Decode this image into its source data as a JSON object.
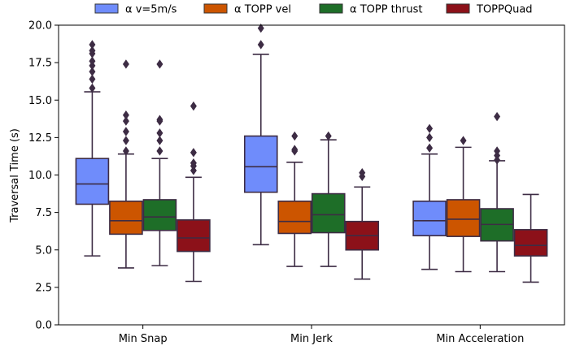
{
  "chart_data": {
    "type": "box",
    "title": "",
    "xlabel": "",
    "ylabel": "Traversal Time (s)",
    "ylim": [
      0,
      20
    ],
    "yticks": [
      "0.0",
      "2.5",
      "5.0",
      "7.5",
      "10.0",
      "12.5",
      "15.0",
      "17.5",
      "20.0"
    ],
    "categories": [
      "Min Snap",
      "Min Jerk",
      "Min Acceleration"
    ],
    "legend_position": "top-center",
    "series": [
      {
        "name": "α v=5m/s",
        "color": "#6f8cfb",
        "boxes": [
          {
            "whisker_low": 4.6,
            "q1": 8.05,
            "median": 9.4,
            "q3": 11.1,
            "whisker_high": 15.55,
            "outliers": [
              15.8,
              16.4,
              16.9,
              17.3,
              17.6,
              18.1,
              18.3,
              18.7
            ]
          },
          {
            "whisker_low": 5.35,
            "q1": 8.85,
            "median": 10.55,
            "q3": 12.6,
            "whisker_high": 18.05,
            "outliers": [
              18.7,
              19.8
            ]
          },
          {
            "whisker_low": 3.7,
            "q1": 5.95,
            "median": 6.95,
            "q3": 8.25,
            "whisker_high": 11.4,
            "outliers": [
              11.8,
              12.5,
              13.1
            ]
          }
        ]
      },
      {
        "name": "α TOPP vel",
        "color": "#cc5500",
        "boxes": [
          {
            "whisker_low": 3.8,
            "q1": 6.05,
            "median": 6.95,
            "q3": 8.25,
            "whisker_high": 11.4,
            "outliers": [
              11.6,
              12.3,
              12.9,
              13.6,
              14.0,
              17.4
            ]
          },
          {
            "whisker_low": 3.9,
            "q1": 6.1,
            "median": 6.9,
            "q3": 8.25,
            "whisker_high": 10.85,
            "outliers": [
              11.6,
              11.7,
              12.6
            ]
          },
          {
            "whisker_low": 3.55,
            "q1": 5.9,
            "median": 7.05,
            "q3": 8.35,
            "whisker_high": 11.85,
            "outliers": [
              12.3
            ]
          }
        ]
      },
      {
        "name": "α TOPP thrust",
        "color": "#1e6e28",
        "boxes": [
          {
            "whisker_low": 3.95,
            "q1": 6.3,
            "median": 7.2,
            "q3": 8.35,
            "whisker_high": 11.1,
            "outliers": [
              11.6,
              12.3,
              12.8,
              13.6,
              13.7,
              17.4
            ]
          },
          {
            "whisker_low": 3.9,
            "q1": 6.15,
            "median": 7.35,
            "q3": 8.75,
            "whisker_high": 12.35,
            "outliers": [
              12.6
            ]
          },
          {
            "whisker_low": 3.55,
            "q1": 5.6,
            "median": 6.7,
            "q3": 7.75,
            "whisker_high": 10.95,
            "outliers": [
              11.0,
              11.3,
              11.6,
              13.9
            ]
          }
        ]
      },
      {
        "name": "TOPPQuad",
        "color": "#8c1119",
        "boxes": [
          {
            "whisker_low": 2.9,
            "q1": 4.9,
            "median": 5.8,
            "q3": 7.0,
            "whisker_high": 9.85,
            "outliers": [
              10.3,
              10.6,
              10.8,
              11.5,
              14.6
            ]
          },
          {
            "whisker_low": 3.05,
            "q1": 5.0,
            "median": 5.95,
            "q3": 6.9,
            "whisker_high": 9.2,
            "outliers": [
              9.9,
              10.15
            ]
          },
          {
            "whisker_low": 2.85,
            "q1": 4.6,
            "median": 5.3,
            "q3": 6.35,
            "whisker_high": 8.7,
            "outliers": []
          }
        ]
      }
    ]
  }
}
